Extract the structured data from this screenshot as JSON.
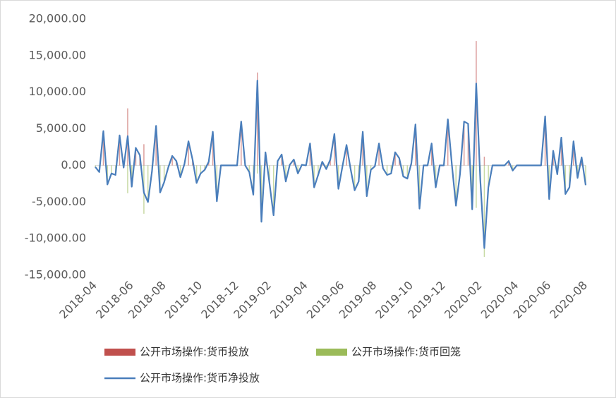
{
  "chart_data": {
    "type": "bar-line",
    "categories": [
      "2018-04",
      null,
      null,
      null,
      null,
      null,
      null,
      null,
      null,
      "2018-06",
      null,
      null,
      null,
      null,
      null,
      null,
      null,
      "2018-08",
      null,
      null,
      null,
      null,
      null,
      null,
      null,
      null,
      "2018-10",
      null,
      null,
      null,
      null,
      null,
      null,
      null,
      null,
      "2018-12",
      null,
      null,
      null,
      null,
      null,
      null,
      null,
      "2019-02",
      null,
      null,
      null,
      null,
      null,
      null,
      null,
      null,
      "2019-04",
      null,
      null,
      null,
      null,
      null,
      null,
      null,
      null,
      "2019-06",
      null,
      null,
      null,
      null,
      null,
      null,
      null,
      "2019-08",
      null,
      null,
      null,
      null,
      null,
      null,
      null,
      null,
      "2019-10",
      null,
      null,
      null,
      null,
      null,
      null,
      null,
      "2019-12",
      null,
      null,
      null,
      null,
      null,
      null,
      null,
      null,
      "2020-02",
      null,
      null,
      null,
      null,
      null,
      null,
      null,
      null,
      "2020-04",
      null,
      null,
      null,
      null,
      null,
      null,
      null,
      "2020-06",
      null,
      null,
      null,
      null,
      null,
      null,
      null,
      null,
      "2020-08"
    ],
    "series": [
      {
        "name": "公开市场操作:货币投放",
        "color": "#c0504d",
        "kind": "bar",
        "values": [
          0,
          0,
          4700,
          0,
          0,
          0,
          4100,
          0,
          7800,
          0,
          2400,
          1400,
          2900,
          0,
          0,
          5400,
          0,
          0,
          0,
          1300,
          600,
          0,
          200,
          3300,
          800,
          0,
          0,
          0,
          500,
          4600,
          0,
          0,
          0,
          0,
          0,
          0,
          6000,
          0,
          0,
          0,
          12700,
          0,
          1800,
          0,
          0,
          600,
          1500,
          0,
          100,
          800,
          0,
          100,
          0,
          3000,
          0,
          0,
          500,
          0,
          800,
          4300,
          0,
          0,
          2800,
          0,
          0,
          0,
          4600,
          0,
          0,
          0,
          3000,
          0,
          0,
          0,
          1800,
          1000,
          0,
          0,
          300,
          5600,
          0,
          0,
          0,
          3000,
          0,
          0,
          0,
          6300,
          0,
          0,
          0,
          6000,
          5700,
          0,
          17000,
          0,
          1200,
          0,
          0,
          0,
          0,
          0,
          600,
          0,
          0,
          0,
          0,
          0,
          0,
          0,
          0,
          6700,
          0,
          2000,
          0,
          3800,
          0,
          0,
          3300,
          0,
          1100,
          0
        ]
      },
      {
        "name": "公开市场操作:货币回笼",
        "color": "#9bbb59",
        "kind": "bar",
        "values": [
          -200,
          -900,
          0,
          -2600,
          -1100,
          -1300,
          0,
          -300,
          -3800,
          -2900,
          0,
          0,
          -6600,
          -5000,
          -800,
          0,
          -3700,
          -2300,
          -300,
          0,
          0,
          -1600,
          0,
          0,
          0,
          -2400,
          -1100,
          -600,
          0,
          0,
          -4900,
          0,
          0,
          0,
          0,
          0,
          0,
          0,
          -900,
          -4000,
          -1100,
          -7700,
          0,
          -2500,
          -6800,
          0,
          0,
          -2200,
          0,
          0,
          -1100,
          0,
          0,
          0,
          -3000,
          -1300,
          0,
          -500,
          0,
          0,
          -3200,
          -100,
          0,
          -500,
          -3400,
          -2200,
          0,
          -4200,
          -600,
          -100,
          0,
          -400,
          -1300,
          -1100,
          0,
          0,
          -1500,
          -1800,
          0,
          0,
          -5900,
          0,
          0,
          0,
          -3000,
          0,
          0,
          0,
          0,
          -5500,
          -1200,
          0,
          0,
          -6000,
          -5800,
          -2000,
          -12500,
          -3000,
          0,
          0,
          0,
          0,
          0,
          -700,
          0,
          0,
          0,
          0,
          0,
          0,
          0,
          0,
          -4600,
          0,
          -1200,
          0,
          -3900,
          -3000,
          0,
          -1700,
          0,
          -2700
        ]
      },
      {
        "name": "公开市场操作:货币净投放",
        "color": "#4a7ebb",
        "kind": "line",
        "values": [
          -200,
          -900,
          4700,
          -2600,
          -1100,
          -1300,
          4100,
          -300,
          4000,
          -2900,
          2400,
          1400,
          -3700,
          -5000,
          -800,
          5400,
          -3700,
          -2300,
          -300,
          1300,
          600,
          -1600,
          200,
          3300,
          800,
          -2400,
          -1100,
          -600,
          500,
          4600,
          -4900,
          0,
          0,
          0,
          0,
          0,
          6000,
          0,
          -900,
          -4000,
          11600,
          -7700,
          1800,
          -2500,
          -6800,
          600,
          1500,
          -2200,
          100,
          800,
          -1100,
          100,
          0,
          3000,
          -3000,
          -1300,
          500,
          -500,
          800,
          4300,
          -3200,
          -100,
          2800,
          -500,
          -3400,
          -2200,
          4600,
          -4200,
          -600,
          -100,
          3000,
          -400,
          -1300,
          -1100,
          1800,
          1000,
          -1500,
          -1800,
          300,
          5600,
          -5900,
          0,
          0,
          3000,
          -3000,
          0,
          0,
          6300,
          0,
          -5500,
          -1200,
          6000,
          5700,
          -6000,
          11200,
          -2000,
          -11300,
          -3000,
          0,
          0,
          0,
          0,
          600,
          -700,
          0,
          0,
          0,
          0,
          0,
          0,
          0,
          6700,
          -4600,
          2000,
          -1200,
          3800,
          -3900,
          -3000,
          3300,
          -1700,
          1100,
          -2700
        ]
      }
    ],
    "ylim": [
      -15000,
      20000
    ],
    "yticks": [
      {
        "value": -15000,
        "label": "-15,000.00"
      },
      {
        "value": -10000,
        "label": "-10,000.00"
      },
      {
        "value": -5000,
        "label": "-5,000.00"
      },
      {
        "value": 0,
        "label": "0.00"
      },
      {
        "value": 5000,
        "label": "5,000.00"
      },
      {
        "value": 10000,
        "label": "10,000.00"
      },
      {
        "value": 15000,
        "label": "15,000.00"
      },
      {
        "value": 20000,
        "label": "20,000.00"
      }
    ],
    "grid": false,
    "legend": "bottom"
  }
}
